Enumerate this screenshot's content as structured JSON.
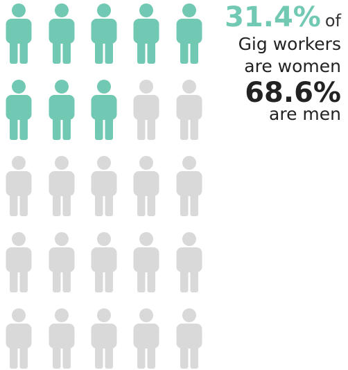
{
  "chart_data": {
    "type": "pictogram",
    "values": [
      31.4,
      68.6
    ],
    "value_labels": [
      "31.4%",
      "68.6%"
    ],
    "colors": [
      "#72c9b3",
      "#d9d9d9"
    ],
    "label_lines": [
      [
        "of",
        "Gig workers",
        "are women"
      ],
      [
        "are men"
      ]
    ]
  }
}
